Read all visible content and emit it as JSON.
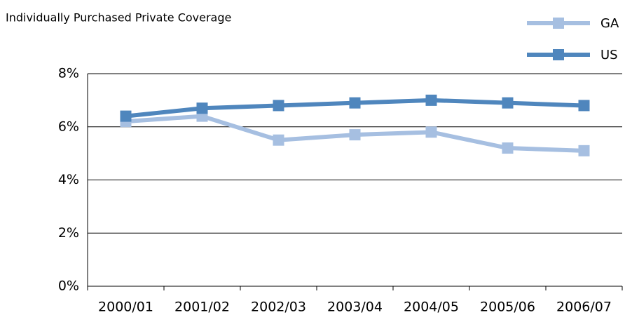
{
  "chart_data": {
    "type": "line",
    "title": "Individually Purchased Private Coverage",
    "categories": [
      "2000/01",
      "2001/02",
      "2002/03",
      "2003/04",
      "2004/05",
      "2005/06",
      "2006/07"
    ],
    "series": [
      {
        "name": "GA",
        "color": "#a6bfe1",
        "values": [
          6.2,
          6.4,
          5.5,
          5.7,
          5.8,
          5.2,
          5.1
        ]
      },
      {
        "name": "US",
        "color": "#4f86bd",
        "values": [
          6.4,
          6.7,
          6.8,
          6.9,
          7.0,
          6.9,
          6.8
        ]
      }
    ],
    "ylim": [
      0,
      8
    ],
    "yticks": [
      {
        "value": 0,
        "label": "0%"
      },
      {
        "value": 2,
        "label": "2%"
      },
      {
        "value": 4,
        "label": "4%"
      },
      {
        "value": 6,
        "label": "6%"
      },
      {
        "value": 8,
        "label": "8%"
      }
    ],
    "grid": true,
    "legend": "top-right"
  }
}
